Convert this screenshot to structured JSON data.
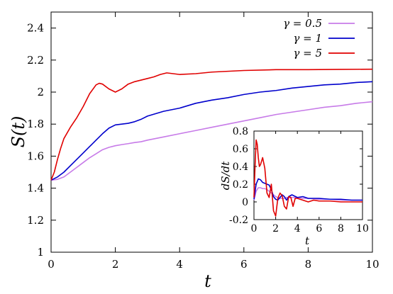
{
  "chart_data": [
    {
      "type": "line",
      "title": "",
      "xlabel": "t",
      "ylabel": "S(t)",
      "xlim": [
        0,
        10
      ],
      "ylim": [
        1,
        2.5
      ],
      "xticks": [
        "0",
        "2",
        "4",
        "6",
        "8",
        "10"
      ],
      "yticks": [
        "1",
        "1.2",
        "1.4",
        "1.6",
        "1.8",
        "2",
        "2.2",
        "2.4"
      ],
      "legend_position": "top-right",
      "grid": false,
      "series": [
        {
          "name": "γ = 0.5",
          "color": "#c77be8",
          "x": [
            0,
            0.2,
            0.4,
            0.6,
            0.8,
            1.0,
            1.2,
            1.4,
            1.6,
            1.8,
            2.0,
            2.2,
            2.4,
            2.6,
            2.8,
            3.0,
            3.5,
            4.0,
            4.5,
            5.0,
            5.5,
            6.0,
            6.5,
            7.0,
            7.5,
            8.0,
            8.5,
            9.0,
            9.5,
            10.0
          ],
          "y": [
            1.45,
            1.455,
            1.47,
            1.5,
            1.53,
            1.56,
            1.59,
            1.615,
            1.64,
            1.655,
            1.665,
            1.672,
            1.678,
            1.685,
            1.69,
            1.7,
            1.72,
            1.74,
            1.76,
            1.78,
            1.8,
            1.82,
            1.84,
            1.86,
            1.875,
            1.89,
            1.905,
            1.915,
            1.93,
            1.94
          ]
        },
        {
          "name": "γ = 1",
          "color": "#0000cc",
          "x": [
            0,
            0.2,
            0.4,
            0.6,
            0.8,
            1.0,
            1.2,
            1.4,
            1.6,
            1.8,
            2.0,
            2.2,
            2.4,
            2.6,
            2.8,
            3.0,
            3.5,
            4.0,
            4.5,
            5.0,
            5.5,
            6.0,
            6.5,
            7.0,
            7.5,
            8.0,
            8.5,
            9.0,
            9.5,
            10.0
          ],
          "y": [
            1.45,
            1.47,
            1.5,
            1.54,
            1.58,
            1.62,
            1.66,
            1.7,
            1.74,
            1.775,
            1.795,
            1.8,
            1.805,
            1.815,
            1.83,
            1.85,
            1.88,
            1.9,
            1.93,
            1.95,
            1.965,
            1.985,
            2.0,
            2.01,
            2.025,
            2.035,
            2.045,
            2.05,
            2.06,
            2.065
          ]
        },
        {
          "name": "γ = 5",
          "color": "#e00000",
          "x": [
            0,
            0.1,
            0.2,
            0.3,
            0.4,
            0.6,
            0.8,
            1.0,
            1.2,
            1.4,
            1.5,
            1.6,
            1.8,
            2.0,
            2.2,
            2.4,
            2.6,
            2.8,
            3.0,
            3.2,
            3.4,
            3.6,
            3.8,
            4.0,
            4.5,
            5.0,
            5.5,
            6.0,
            7.0,
            8.0,
            9.0,
            10.0
          ],
          "y": [
            1.45,
            1.5,
            1.58,
            1.65,
            1.71,
            1.78,
            1.84,
            1.91,
            1.99,
            2.045,
            2.055,
            2.05,
            2.02,
            2.0,
            2.02,
            2.05,
            2.065,
            2.075,
            2.085,
            2.095,
            2.11,
            2.12,
            2.115,
            2.11,
            2.115,
            2.125,
            2.13,
            2.135,
            2.14,
            2.14,
            2.142,
            2.143
          ]
        }
      ]
    },
    {
      "type": "line",
      "title": "",
      "xlabel": "t",
      "ylabel": "dS/dt",
      "xlim": [
        0,
        10
      ],
      "ylim": [
        -0.2,
        0.8
      ],
      "xticks": [
        "0",
        "2",
        "4",
        "6",
        "8",
        "10"
      ],
      "yticks": [
        "-0.2",
        "0",
        "0.2",
        "0.4",
        "0.6",
        "0.8"
      ],
      "grid": false,
      "series": [
        {
          "color": "#c77be8",
          "x": [
            0,
            0.2,
            0.4,
            0.6,
            0.8,
            1.0,
            1.2,
            1.4,
            1.6,
            1.8,
            2.0,
            2.2,
            2.4,
            2.6,
            2.8,
            3.0,
            3.5,
            4.0,
            4.5,
            5.0,
            6.0,
            7.0,
            8.0,
            9.0,
            10.0
          ],
          "y": [
            0.02,
            0.12,
            0.16,
            0.16,
            0.15,
            0.15,
            0.14,
            0.12,
            0.1,
            0.08,
            0.06,
            0.05,
            0.04,
            0.04,
            0.04,
            0.05,
            0.05,
            0.05,
            0.04,
            0.04,
            0.03,
            0.03,
            0.02,
            0.02,
            0.02
          ]
        },
        {
          "color": "#0000cc",
          "x": [
            0,
            0.2,
            0.4,
            0.6,
            0.8,
            1.0,
            1.2,
            1.4,
            1.6,
            1.8,
            2.0,
            2.2,
            2.4,
            2.6,
            2.8,
            3.0,
            3.2,
            3.5,
            4.0,
            4.5,
            5.0,
            6.0,
            7.0,
            8.0,
            9.0,
            10.0
          ],
          "y": [
            0.03,
            0.2,
            0.26,
            0.25,
            0.22,
            0.21,
            0.2,
            0.19,
            0.14,
            0.06,
            0.03,
            0.02,
            0.05,
            0.08,
            0.06,
            0.02,
            0.06,
            0.08,
            0.05,
            0.06,
            0.04,
            0.04,
            0.03,
            0.03,
            0.02,
            0.02
          ]
        },
        {
          "color": "#e00000",
          "x": [
            0,
            0.1,
            0.2,
            0.3,
            0.4,
            0.5,
            0.6,
            0.8,
            1.0,
            1.2,
            1.4,
            1.6,
            1.8,
            2.0,
            2.2,
            2.4,
            2.6,
            2.8,
            3.0,
            3.2,
            3.4,
            3.6,
            3.8,
            4.0,
            4.5,
            5.0,
            5.5,
            6.0,
            7.0,
            8.0,
            9.0,
            10.0
          ],
          "y": [
            0.05,
            0.4,
            0.7,
            0.65,
            0.5,
            0.4,
            0.42,
            0.5,
            0.38,
            0.1,
            0.05,
            0.2,
            -0.1,
            -0.16,
            0.04,
            0.1,
            0.07,
            -0.05,
            -0.08,
            0.06,
            0.05,
            -0.05,
            0.04,
            0.04,
            0.02,
            0.0,
            0.02,
            0.01,
            0.01,
            0.0,
            0.0,
            0.0
          ]
        }
      ]
    }
  ]
}
